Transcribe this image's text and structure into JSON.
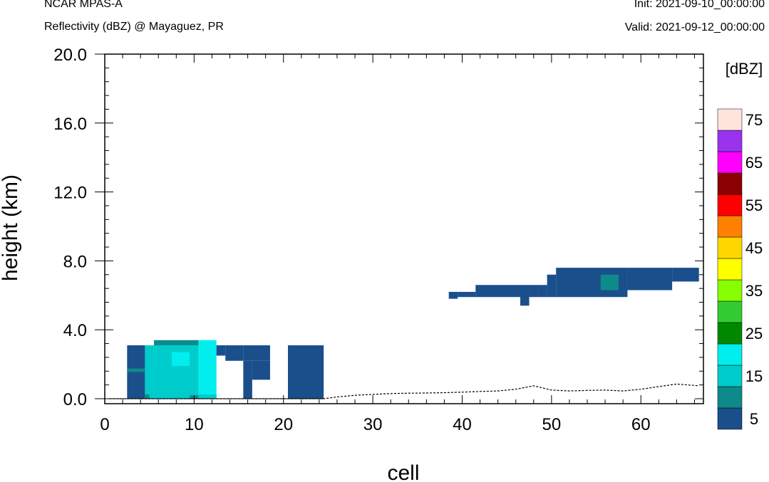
{
  "header": {
    "model": "NCAR MPAS-A",
    "field": "Reflectivity (dBZ) @ Mayaguez, PR",
    "init": "Init: 2021-09-10_00:00:00",
    "valid": "Valid: 2021-09-12_00:00:00"
  },
  "chart_data": {
    "type": "heatmap",
    "xlabel": "cell",
    "ylabel": "height (km)",
    "xlim": [
      0,
      67
    ],
    "ylim": [
      -0.2,
      20.0
    ],
    "x_ticks": [
      "0",
      "10",
      "20",
      "30",
      "40",
      "50",
      "60"
    ],
    "y_ticks": [
      "0.0",
      "4.0",
      "8.0",
      "12.0",
      "16.0",
      "20.0"
    ],
    "colorbar": {
      "label": "[dBZ]",
      "ticks": [
        "5",
        "15",
        "25",
        "35",
        "45",
        "55",
        "65",
        "75"
      ],
      "levels": [
        {
          "min": 0,
          "color": "#1a4f8c"
        },
        {
          "min": 10,
          "color": "#0e8a8a"
        },
        {
          "min": 15,
          "color": "#00cccc"
        },
        {
          "min": 20,
          "color": "#00eeee"
        },
        {
          "min": 25,
          "color": "#008800"
        },
        {
          "min": 30,
          "color": "#33cc33"
        },
        {
          "min": 35,
          "color": "#88ff00"
        },
        {
          "min": 40,
          "color": "#ffff00"
        },
        {
          "min": 45,
          "color": "#ffd700"
        },
        {
          "min": 50,
          "color": "#ff8000"
        },
        {
          "min": 55,
          "color": "#ff0000"
        },
        {
          "min": 60,
          "color": "#8b0000"
        },
        {
          "min": 65,
          "color": "#ff00ff"
        },
        {
          "min": 70,
          "color": "#9933ee"
        },
        {
          "min": 75,
          "color": "#ffe4dc"
        }
      ]
    },
    "cells": [
      {
        "x": [
          2.5,
          4.5
        ],
        "z": [
          0.0,
          3.1
        ],
        "dbz": 5
      },
      {
        "x": [
          2.5,
          4.5
        ],
        "z": [
          1.55,
          1.75
        ],
        "dbz": 10
      },
      {
        "x": [
          4.5,
          5.5
        ],
        "z": [
          0.0,
          3.1
        ],
        "dbz": 15
      },
      {
        "x": [
          5.5,
          10.5
        ],
        "z": [
          0.0,
          3.1
        ],
        "dbz": 15
      },
      {
        "x": [
          5.5,
          10.5
        ],
        "z": [
          3.1,
          3.4
        ],
        "dbz": 10
      },
      {
        "x": [
          7.5,
          9.5
        ],
        "z": [
          1.9,
          2.7
        ],
        "dbz": 20
      },
      {
        "x": [
          10.5,
          12.5
        ],
        "z": [
          0.0,
          3.4
        ],
        "dbz": 20
      },
      {
        "x": [
          4.5,
          5.0
        ],
        "z": [
          0.0,
          0.25
        ],
        "dbz": 10
      },
      {
        "x": [
          9.5,
          10.5
        ],
        "z": [
          0.0,
          0.2
        ],
        "dbz": 10
      },
      {
        "x": [
          10.5,
          12.5
        ],
        "z": [
          0.0,
          0.25
        ],
        "dbz": 15
      },
      {
        "x": [
          12.5,
          13.5
        ],
        "z": [
          2.5,
          3.1
        ],
        "dbz": 5
      },
      {
        "x": [
          13.5,
          15.5
        ],
        "z": [
          2.2,
          3.1
        ],
        "dbz": 5
      },
      {
        "x": [
          15.5,
          18.5
        ],
        "z": [
          2.2,
          3.1
        ],
        "dbz": 5
      },
      {
        "x": [
          15.5,
          16.5
        ],
        "z": [
          0.0,
          2.2
        ],
        "dbz": 5
      },
      {
        "x": [
          16.5,
          18.5
        ],
        "z": [
          1.1,
          2.2
        ],
        "dbz": 5
      },
      {
        "x": [
          20.5,
          24.5
        ],
        "z": [
          0.0,
          3.1
        ],
        "dbz": 5
      },
      {
        "x": [
          38.5,
          39.5
        ],
        "z": [
          5.8,
          6.2
        ],
        "dbz": 5
      },
      {
        "x": [
          39.5,
          41.5
        ],
        "z": [
          5.9,
          6.2
        ],
        "dbz": 5
      },
      {
        "x": [
          41.5,
          46.5
        ],
        "z": [
          5.9,
          6.6
        ],
        "dbz": 5
      },
      {
        "x": [
          46.5,
          47.5
        ],
        "z": [
          5.4,
          6.6
        ],
        "dbz": 5
      },
      {
        "x": [
          47.5,
          48.5
        ],
        "z": [
          5.9,
          6.6
        ],
        "dbz": 5
      },
      {
        "x": [
          48.5,
          49.5
        ],
        "z": [
          5.9,
          6.6
        ],
        "dbz": 5
      },
      {
        "x": [
          49.5,
          50.5
        ],
        "z": [
          5.9,
          7.2
        ],
        "dbz": 5
      },
      {
        "x": [
          50.5,
          58.5
        ],
        "z": [
          5.9,
          7.6
        ],
        "dbz": 5
      },
      {
        "x": [
          58.5,
          63.5
        ],
        "z": [
          6.3,
          7.6
        ],
        "dbz": 5
      },
      {
        "x": [
          63.5,
          66.5
        ],
        "z": [
          6.8,
          7.6
        ],
        "dbz": 5
      },
      {
        "x": [
          55.5,
          57.5
        ],
        "z": [
          6.3,
          7.2
        ],
        "dbz": 10
      }
    ],
    "terrain": {
      "x": [
        0.5,
        24.5,
        26,
        28,
        30,
        32,
        34,
        36,
        38,
        40,
        42,
        44,
        46,
        48,
        50,
        52,
        54,
        56,
        58,
        60,
        62,
        64,
        66.5
      ],
      "height_km": [
        0.0,
        0.0,
        0.1,
        0.2,
        0.25,
        0.3,
        0.32,
        0.33,
        0.35,
        0.38,
        0.42,
        0.45,
        0.55,
        0.75,
        0.5,
        0.45,
        0.48,
        0.5,
        0.45,
        0.55,
        0.7,
        0.85,
        0.75
      ]
    }
  }
}
